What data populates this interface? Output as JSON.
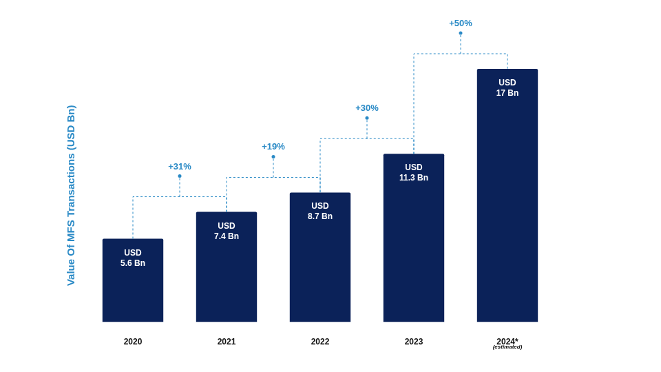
{
  "chart_data": {
    "type": "bar",
    "y_label": "Value Of MFS Transactions (USD Bn)",
    "categories": [
      "2020",
      "2021",
      "2022",
      "2023",
      "2024*"
    ],
    "values": [
      5.6,
      7.4,
      8.7,
      11.3,
      17
    ],
    "value_labels": [
      "USD 5.6 Bn",
      "USD 7.4 Bn",
      "USD 8.7 Bn",
      "USD 11.3 Bn",
      "USD 17 Bn"
    ],
    "data_labels": true,
    "color": "#0b2259",
    "ylim": [
      0,
      17
    ],
    "grid": false,
    "tick_labels": "x",
    "annotations": [
      {
        "between": [
          "2020",
          "2021"
        ],
        "text": "+31%"
      },
      {
        "between": [
          "2021",
          "2022"
        ],
        "text": "+19%"
      },
      {
        "between": [
          "2022",
          "2023"
        ],
        "text": "+30%"
      },
      {
        "between": [
          "2023",
          "2024*"
        ],
        "text": "+50%"
      },
      {
        "category": "2024*",
        "text": "(estimated)"
      }
    ]
  }
}
